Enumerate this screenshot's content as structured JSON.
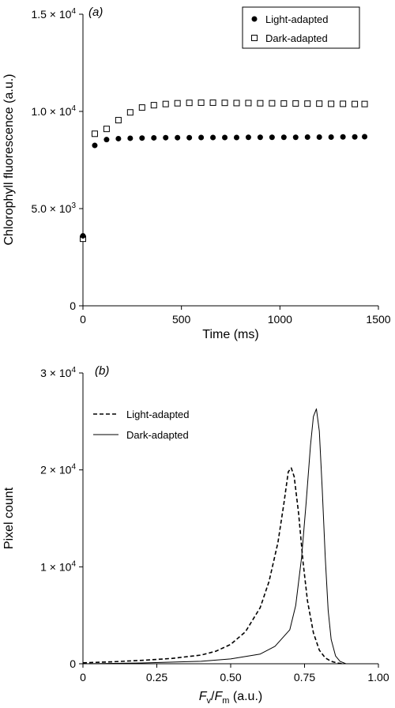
{
  "chart_data": [
    {
      "panel_label": "(a)",
      "type": "scatter",
      "xlabel": "Time (ms)",
      "ylabel": "Chlorophyll fluorescence (a.u.)",
      "xlim": [
        0,
        1500
      ],
      "ylim": [
        0,
        15000
      ],
      "x_ticks": [
        0,
        500,
        1000,
        1500
      ],
      "x_tick_labels": [
        "0",
        "500",
        "1000",
        "1500"
      ],
      "y_ticks": [
        0,
        5000,
        10000,
        15000
      ],
      "y_tick_labels": [
        {
          "mantissa": "0",
          "exponent": ""
        },
        {
          "mantissa": "5.0 × 10",
          "exponent": "3"
        },
        {
          "mantissa": "1.0 × 10",
          "exponent": "4"
        },
        {
          "mantissa": "1.5 × 10",
          "exponent": "4"
        }
      ],
      "legend_position": "top-right",
      "grid": false,
      "series": [
        {
          "name": "Light-adapted",
          "marker": "filled-circle",
          "x": [
            0,
            60,
            120,
            180,
            240,
            300,
            360,
            420,
            480,
            540,
            600,
            660,
            720,
            780,
            840,
            900,
            960,
            1020,
            1080,
            1140,
            1200,
            1260,
            1320,
            1380,
            1430
          ],
          "y": [
            3600,
            8250,
            8550,
            8600,
            8620,
            8630,
            8640,
            8650,
            8650,
            8650,
            8660,
            8660,
            8660,
            8660,
            8670,
            8670,
            8670,
            8670,
            8670,
            8680,
            8680,
            8680,
            8690,
            8690,
            8700
          ]
        },
        {
          "name": "Dark-adapted",
          "marker": "open-square",
          "x": [
            0,
            60,
            120,
            180,
            240,
            300,
            360,
            420,
            480,
            540,
            600,
            660,
            720,
            780,
            840,
            900,
            960,
            1020,
            1080,
            1140,
            1200,
            1260,
            1320,
            1380,
            1430
          ],
          "y": [
            3450,
            8850,
            9100,
            9550,
            9950,
            10200,
            10320,
            10380,
            10420,
            10440,
            10450,
            10450,
            10440,
            10430,
            10430,
            10420,
            10420,
            10410,
            10410,
            10400,
            10400,
            10390,
            10390,
            10380,
            10380
          ]
        }
      ]
    },
    {
      "panel_label": "(b)",
      "type": "line",
      "xlabel_parts": {
        "f1": "F",
        "s1": "v",
        "slash": "/",
        "f2": "F",
        "s2": "m",
        "unit": " (a.u.)"
      },
      "ylabel": "Pixel count",
      "xlim": [
        0,
        1.0
      ],
      "ylim": [
        0,
        30000
      ],
      "x_ticks": [
        0,
        0.25,
        0.5,
        0.75,
        1.0
      ],
      "x_tick_labels": [
        "0",
        "0.25",
        "0.50",
        "0.75",
        "1.00"
      ],
      "y_ticks": [
        0,
        10000,
        20000,
        30000
      ],
      "y_tick_labels": [
        {
          "mantissa": "0",
          "exponent": ""
        },
        {
          "mantissa": "1 × 10",
          "exponent": "4"
        },
        {
          "mantissa": "2 × 10",
          "exponent": "4"
        },
        {
          "mantissa": "3 × 10",
          "exponent": "4"
        }
      ],
      "legend_position": "top-left",
      "grid": false,
      "series": [
        {
          "name": "Light-adapted",
          "line_style": "dashed",
          "x": [
            0,
            0.1,
            0.2,
            0.3,
            0.4,
            0.45,
            0.5,
            0.55,
            0.6,
            0.63,
            0.66,
            0.68,
            0.695,
            0.705,
            0.715,
            0.73,
            0.745,
            0.76,
            0.78,
            0.8,
            0.82,
            0.84,
            0.86,
            0.88
          ],
          "y": [
            100,
            200,
            350,
            550,
            900,
            1300,
            2000,
            3300,
            5800,
            8500,
            12500,
            16500,
            19800,
            20200,
            19300,
            15500,
            10500,
            6500,
            3200,
            1400,
            600,
            250,
            80,
            0
          ]
        },
        {
          "name": "Dark-adapted",
          "line_style": "solid",
          "x": [
            0,
            0.2,
            0.4,
            0.5,
            0.6,
            0.65,
            0.7,
            0.72,
            0.74,
            0.755,
            0.77,
            0.78,
            0.79,
            0.8,
            0.81,
            0.82,
            0.83,
            0.84,
            0.855,
            0.87,
            0.89
          ],
          "y": [
            0,
            80,
            250,
            500,
            1000,
            1800,
            3500,
            6000,
            11000,
            16500,
            22500,
            25500,
            26300,
            24000,
            18000,
            11000,
            5500,
            2500,
            800,
            250,
            0
          ]
        }
      ]
    }
  ]
}
